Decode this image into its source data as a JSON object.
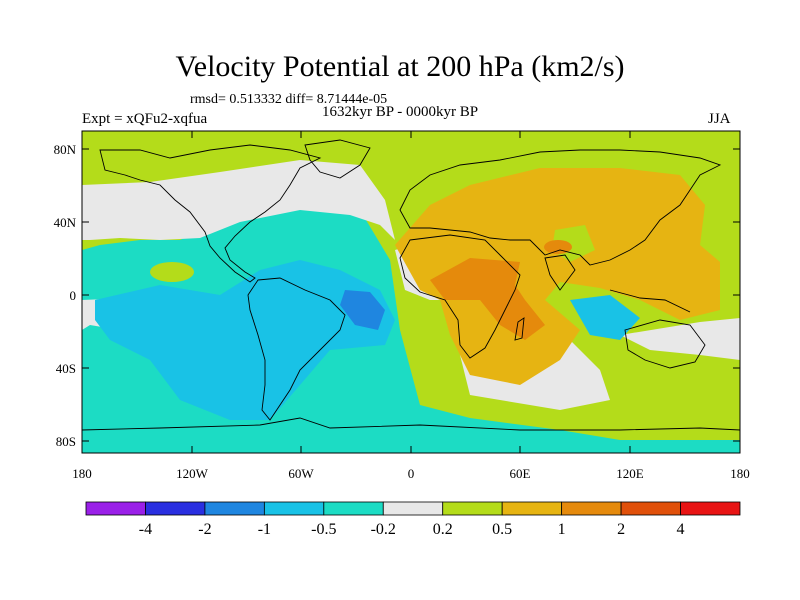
{
  "title": "Velocity Potential at 200 hPa (km2/s)",
  "stats": "rmsd= 0.513332 diff= 8.71444e-05",
  "experiment": "Expt = xQFu2-xqfua",
  "period": "1632kyr BP - 0000kyr BP",
  "season": "JJA",
  "lon_ticks": [
    "180",
    "120W",
    "60W",
    "0",
    "60E",
    "120E",
    "180"
  ],
  "lat_ticks": [
    "80N",
    "40N",
    "0",
    "40S",
    "80S"
  ],
  "colorbar": {
    "colors": [
      "#9a20e8",
      "#2a2fe0",
      "#1f86e0",
      "#19c2e6",
      "#1cdcc4",
      "#e8e8e8",
      "#b4dc1a",
      "#e6b412",
      "#e58a0c",
      "#e0500a",
      "#e81414"
    ],
    "labels": [
      "-4",
      "-2",
      "-1",
      "-0.5",
      "-0.2",
      "0.2",
      "0.5",
      "1",
      "2",
      "4"
    ]
  }
}
